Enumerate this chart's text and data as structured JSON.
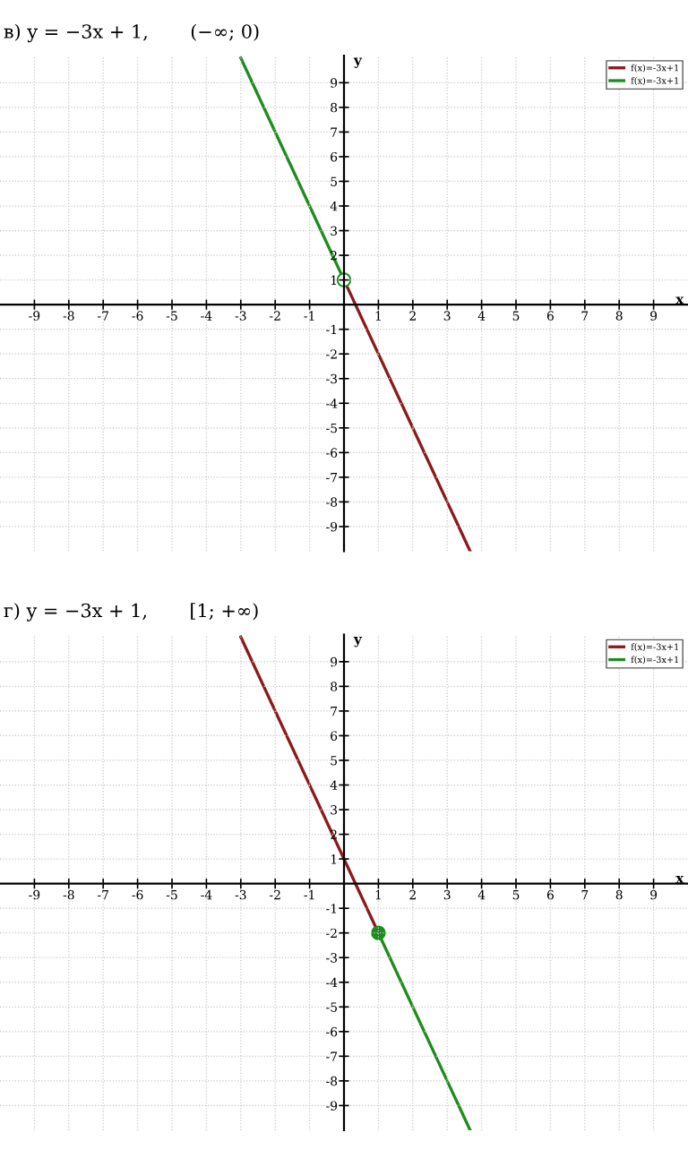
{
  "chart_data": [
    {
      "type": "line",
      "title": "в) y = −3x + 1,       (−∞; 0)",
      "xlabel": "x",
      "ylabel": "y",
      "xlim": [
        -10,
        10
      ],
      "ylim": [
        -10,
        10.1
      ],
      "xticks": [
        -9,
        -8,
        -7,
        -6,
        -5,
        -4,
        -3,
        -2,
        -1,
        1,
        2,
        3,
        4,
        5,
        6,
        7,
        8,
        9
      ],
      "yticks": [
        -9,
        -8,
        -7,
        -6,
        -5,
        -4,
        -3,
        -2,
        -1,
        1,
        2,
        3,
        4,
        5,
        6,
        7,
        8,
        9
      ],
      "grid": true,
      "legend": "top right",
      "marker": "none",
      "series": [
        {
          "name": "f(x)=-3x+1",
          "color": "#8b1a1a",
          "x": [
            0,
            3.667
          ],
          "values": [
            1,
            -10
          ]
        },
        {
          "name": "f(x)=-3x+1",
          "color": "#1e8c1e",
          "x": [
            -3,
            0
          ],
          "values": [
            10,
            1
          ]
        },
        {
          "type": "scatter",
          "marker": "circle",
          "color": "#ffffff",
          "x": [
            0
          ],
          "values": [
            1
          ]
        }
      ]
    },
    {
      "type": "line",
      "title": "г) y = −3x + 1,       [1; +∞)",
      "xlabel": "x",
      "ylabel": "y",
      "xlim": [
        -10,
        10
      ],
      "ylim": [
        -10,
        10.1
      ],
      "xticks": [
        -9,
        -8,
        -7,
        -6,
        -5,
        -4,
        -3,
        -2,
        -1,
        1,
        2,
        3,
        4,
        5,
        6,
        7,
        8,
        9
      ],
      "yticks": [
        -9,
        -8,
        -7,
        -6,
        -5,
        -4,
        -3,
        -2,
        -1,
        1,
        2,
        3,
        4,
        5,
        6,
        7,
        8,
        9
      ],
      "grid": true,
      "legend": "top right",
      "marker": "none",
      "series": [
        {
          "name": "f(x)=-3x+1",
          "color": "#8b1a1a",
          "x": [
            -3,
            1
          ],
          "values": [
            10,
            -2
          ]
        },
        {
          "name": "f(x)=-3x+1",
          "color": "#1e8c1e",
          "x": [
            1,
            3.667
          ],
          "values": [
            -2,
            -10
          ]
        },
        {
          "type": "scatter",
          "marker": "circle",
          "color": "#1e8c1e",
          "x": [
            1
          ],
          "values": [
            -2
          ]
        }
      ]
    }
  ]
}
